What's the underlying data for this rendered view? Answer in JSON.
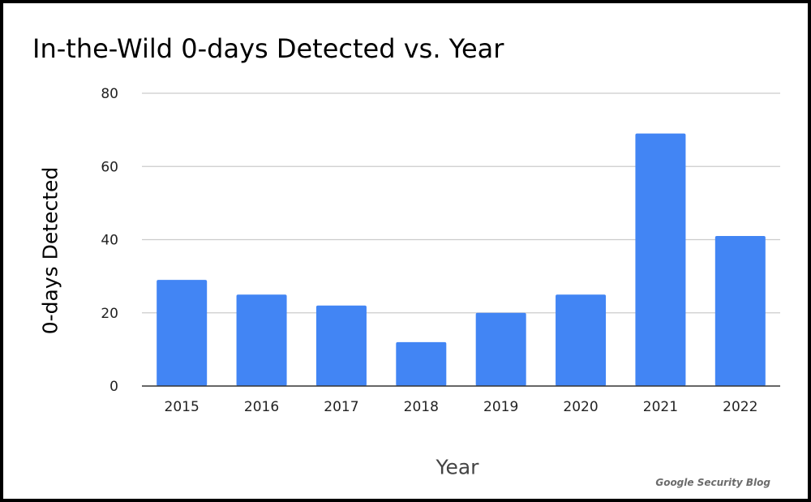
{
  "chart_data": {
    "type": "bar",
    "title": "In-the-Wild 0-days Detected vs. Year",
    "xlabel": "Year",
    "ylabel": "0-days Detected",
    "categories": [
      "2015",
      "2016",
      "2017",
      "2018",
      "2019",
      "2020",
      "2021",
      "2022"
    ],
    "values": [
      29,
      25,
      22,
      12,
      20,
      25,
      69,
      41
    ],
    "ylim": [
      0,
      80
    ],
    "yticks": [
      0,
      20,
      40,
      60,
      80
    ],
    "grid": true,
    "legend": "none",
    "bar_color": "#4285f4",
    "grid_color": "#cccccc",
    "axis_color": "#333333"
  },
  "credit": "Google Security Blog"
}
